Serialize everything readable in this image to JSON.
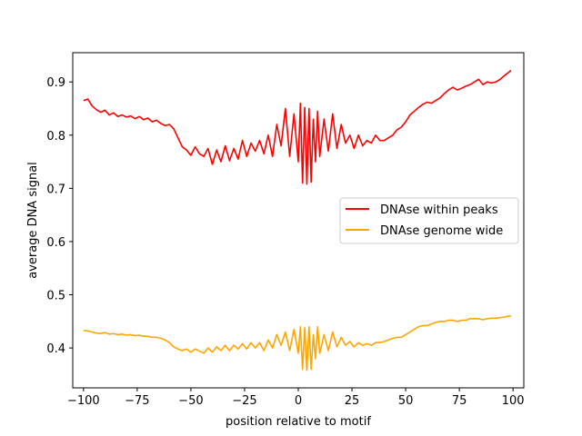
{
  "chart_data": {
    "type": "line",
    "title": "",
    "xlabel": "position relative to motif",
    "ylabel": "average DNA signal",
    "xlim": [
      -105,
      105
    ],
    "ylim": [
      0.325,
      0.955
    ],
    "xticks": [
      -100,
      -75,
      -50,
      -25,
      0,
      25,
      50,
      75,
      100
    ],
    "xtick_labels": [
      "−100",
      "−75",
      "−50",
      "−25",
      "0",
      "25",
      "50",
      "75",
      "100"
    ],
    "yticks": [
      0.4,
      0.5,
      0.6,
      0.7,
      0.8,
      0.9
    ],
    "ytick_labels": [
      "0.4",
      "0.5",
      "0.6",
      "0.7",
      "0.8",
      "0.9"
    ],
    "grid": false,
    "legend_position": "center-right",
    "series": [
      {
        "name": "DNAse within peaks",
        "color": "#ff0000",
        "x": [
          -100,
          -98,
          -96,
          -94,
          -92,
          -90,
          -88,
          -86,
          -84,
          -82,
          -80,
          -78,
          -76,
          -74,
          -72,
          -70,
          -68,
          -66,
          -64,
          -62,
          -60,
          -58,
          -56,
          -54,
          -52,
          -50,
          -48,
          -46,
          -44,
          -42,
          -40,
          -38,
          -36,
          -34,
          -32,
          -30,
          -28,
          -26,
          -24,
          -22,
          -20,
          -18,
          -16,
          -14,
          -12,
          -10,
          -8,
          -6,
          -4,
          -2,
          0,
          1,
          2,
          3,
          4,
          5,
          6,
          7,
          8,
          9,
          10,
          12,
          14,
          16,
          18,
          20,
          22,
          24,
          26,
          28,
          30,
          32,
          34,
          36,
          38,
          40,
          42,
          44,
          46,
          48,
          50,
          52,
          54,
          56,
          58,
          60,
          62,
          64,
          66,
          68,
          70,
          72,
          74,
          76,
          78,
          80,
          82,
          84,
          86,
          88,
          90,
          92,
          94,
          96,
          98,
          99
        ],
        "values": [
          0.865,
          0.868,
          0.855,
          0.848,
          0.843,
          0.847,
          0.838,
          0.842,
          0.835,
          0.838,
          0.834,
          0.836,
          0.831,
          0.835,
          0.829,
          0.832,
          0.825,
          0.828,
          0.822,
          0.818,
          0.82,
          0.812,
          0.795,
          0.778,
          0.772,
          0.762,
          0.778,
          0.765,
          0.76,
          0.775,
          0.745,
          0.772,
          0.75,
          0.78,
          0.752,
          0.775,
          0.755,
          0.79,
          0.76,
          0.785,
          0.77,
          0.79,
          0.765,
          0.8,
          0.76,
          0.82,
          0.78,
          0.85,
          0.76,
          0.84,
          0.75,
          0.86,
          0.71,
          0.852,
          0.708,
          0.85,
          0.712,
          0.83,
          0.75,
          0.845,
          0.76,
          0.83,
          0.77,
          0.84,
          0.775,
          0.82,
          0.785,
          0.8,
          0.775,
          0.8,
          0.78,
          0.79,
          0.785,
          0.8,
          0.79,
          0.79,
          0.795,
          0.8,
          0.81,
          0.815,
          0.825,
          0.838,
          0.845,
          0.852,
          0.858,
          0.862,
          0.86,
          0.865,
          0.87,
          0.878,
          0.885,
          0.89,
          0.885,
          0.888,
          0.892,
          0.895,
          0.9,
          0.905,
          0.895,
          0.9,
          0.898,
          0.9,
          0.905,
          0.912,
          0.918,
          0.922
        ],
        "note": "line over positions -100..100"
      },
      {
        "name": "DNAse genome wide",
        "color": "#ffa500",
        "x": [
          -100,
          -98,
          -96,
          -94,
          -92,
          -90,
          -88,
          -86,
          -84,
          -82,
          -80,
          -78,
          -76,
          -74,
          -72,
          -70,
          -68,
          -66,
          -64,
          -62,
          -60,
          -58,
          -56,
          -54,
          -52,
          -50,
          -48,
          -46,
          -44,
          -42,
          -40,
          -38,
          -36,
          -34,
          -32,
          -30,
          -28,
          -26,
          -24,
          -22,
          -20,
          -18,
          -16,
          -14,
          -12,
          -10,
          -8,
          -6,
          -4,
          -2,
          0,
          1,
          2,
          3,
          4,
          5,
          6,
          7,
          8,
          9,
          10,
          12,
          14,
          16,
          18,
          20,
          22,
          24,
          26,
          28,
          30,
          32,
          34,
          36,
          38,
          40,
          42,
          44,
          46,
          48,
          50,
          52,
          54,
          56,
          58,
          60,
          62,
          64,
          66,
          68,
          70,
          72,
          74,
          76,
          78,
          80,
          82,
          84,
          86,
          88,
          90,
          92,
          94,
          96,
          98,
          99
        ],
        "values": [
          0.433,
          0.432,
          0.43,
          0.428,
          0.427,
          0.429,
          0.426,
          0.427,
          0.425,
          0.426,
          0.424,
          0.425,
          0.423,
          0.424,
          0.422,
          0.422,
          0.42,
          0.42,
          0.418,
          0.415,
          0.41,
          0.402,
          0.398,
          0.395,
          0.398,
          0.392,
          0.398,
          0.394,
          0.39,
          0.4,
          0.392,
          0.402,
          0.395,
          0.405,
          0.395,
          0.405,
          0.398,
          0.408,
          0.398,
          0.41,
          0.4,
          0.41,
          0.395,
          0.415,
          0.4,
          0.425,
          0.405,
          0.43,
          0.395,
          0.435,
          0.39,
          0.44,
          0.36,
          0.438,
          0.358,
          0.44,
          0.36,
          0.425,
          0.38,
          0.44,
          0.39,
          0.425,
          0.395,
          0.43,
          0.402,
          0.42,
          0.405,
          0.412,
          0.402,
          0.41,
          0.405,
          0.408,
          0.405,
          0.41,
          0.41,
          0.412,
          0.415,
          0.418,
          0.42,
          0.42,
          0.425,
          0.43,
          0.435,
          0.44,
          0.442,
          0.442,
          0.445,
          0.448,
          0.45,
          0.45,
          0.452,
          0.452,
          0.45,
          0.452,
          0.452,
          0.455,
          0.455,
          0.455,
          0.453,
          0.455,
          0.456,
          0.456,
          0.457,
          0.458,
          0.46,
          0.46
        ]
      }
    ]
  }
}
